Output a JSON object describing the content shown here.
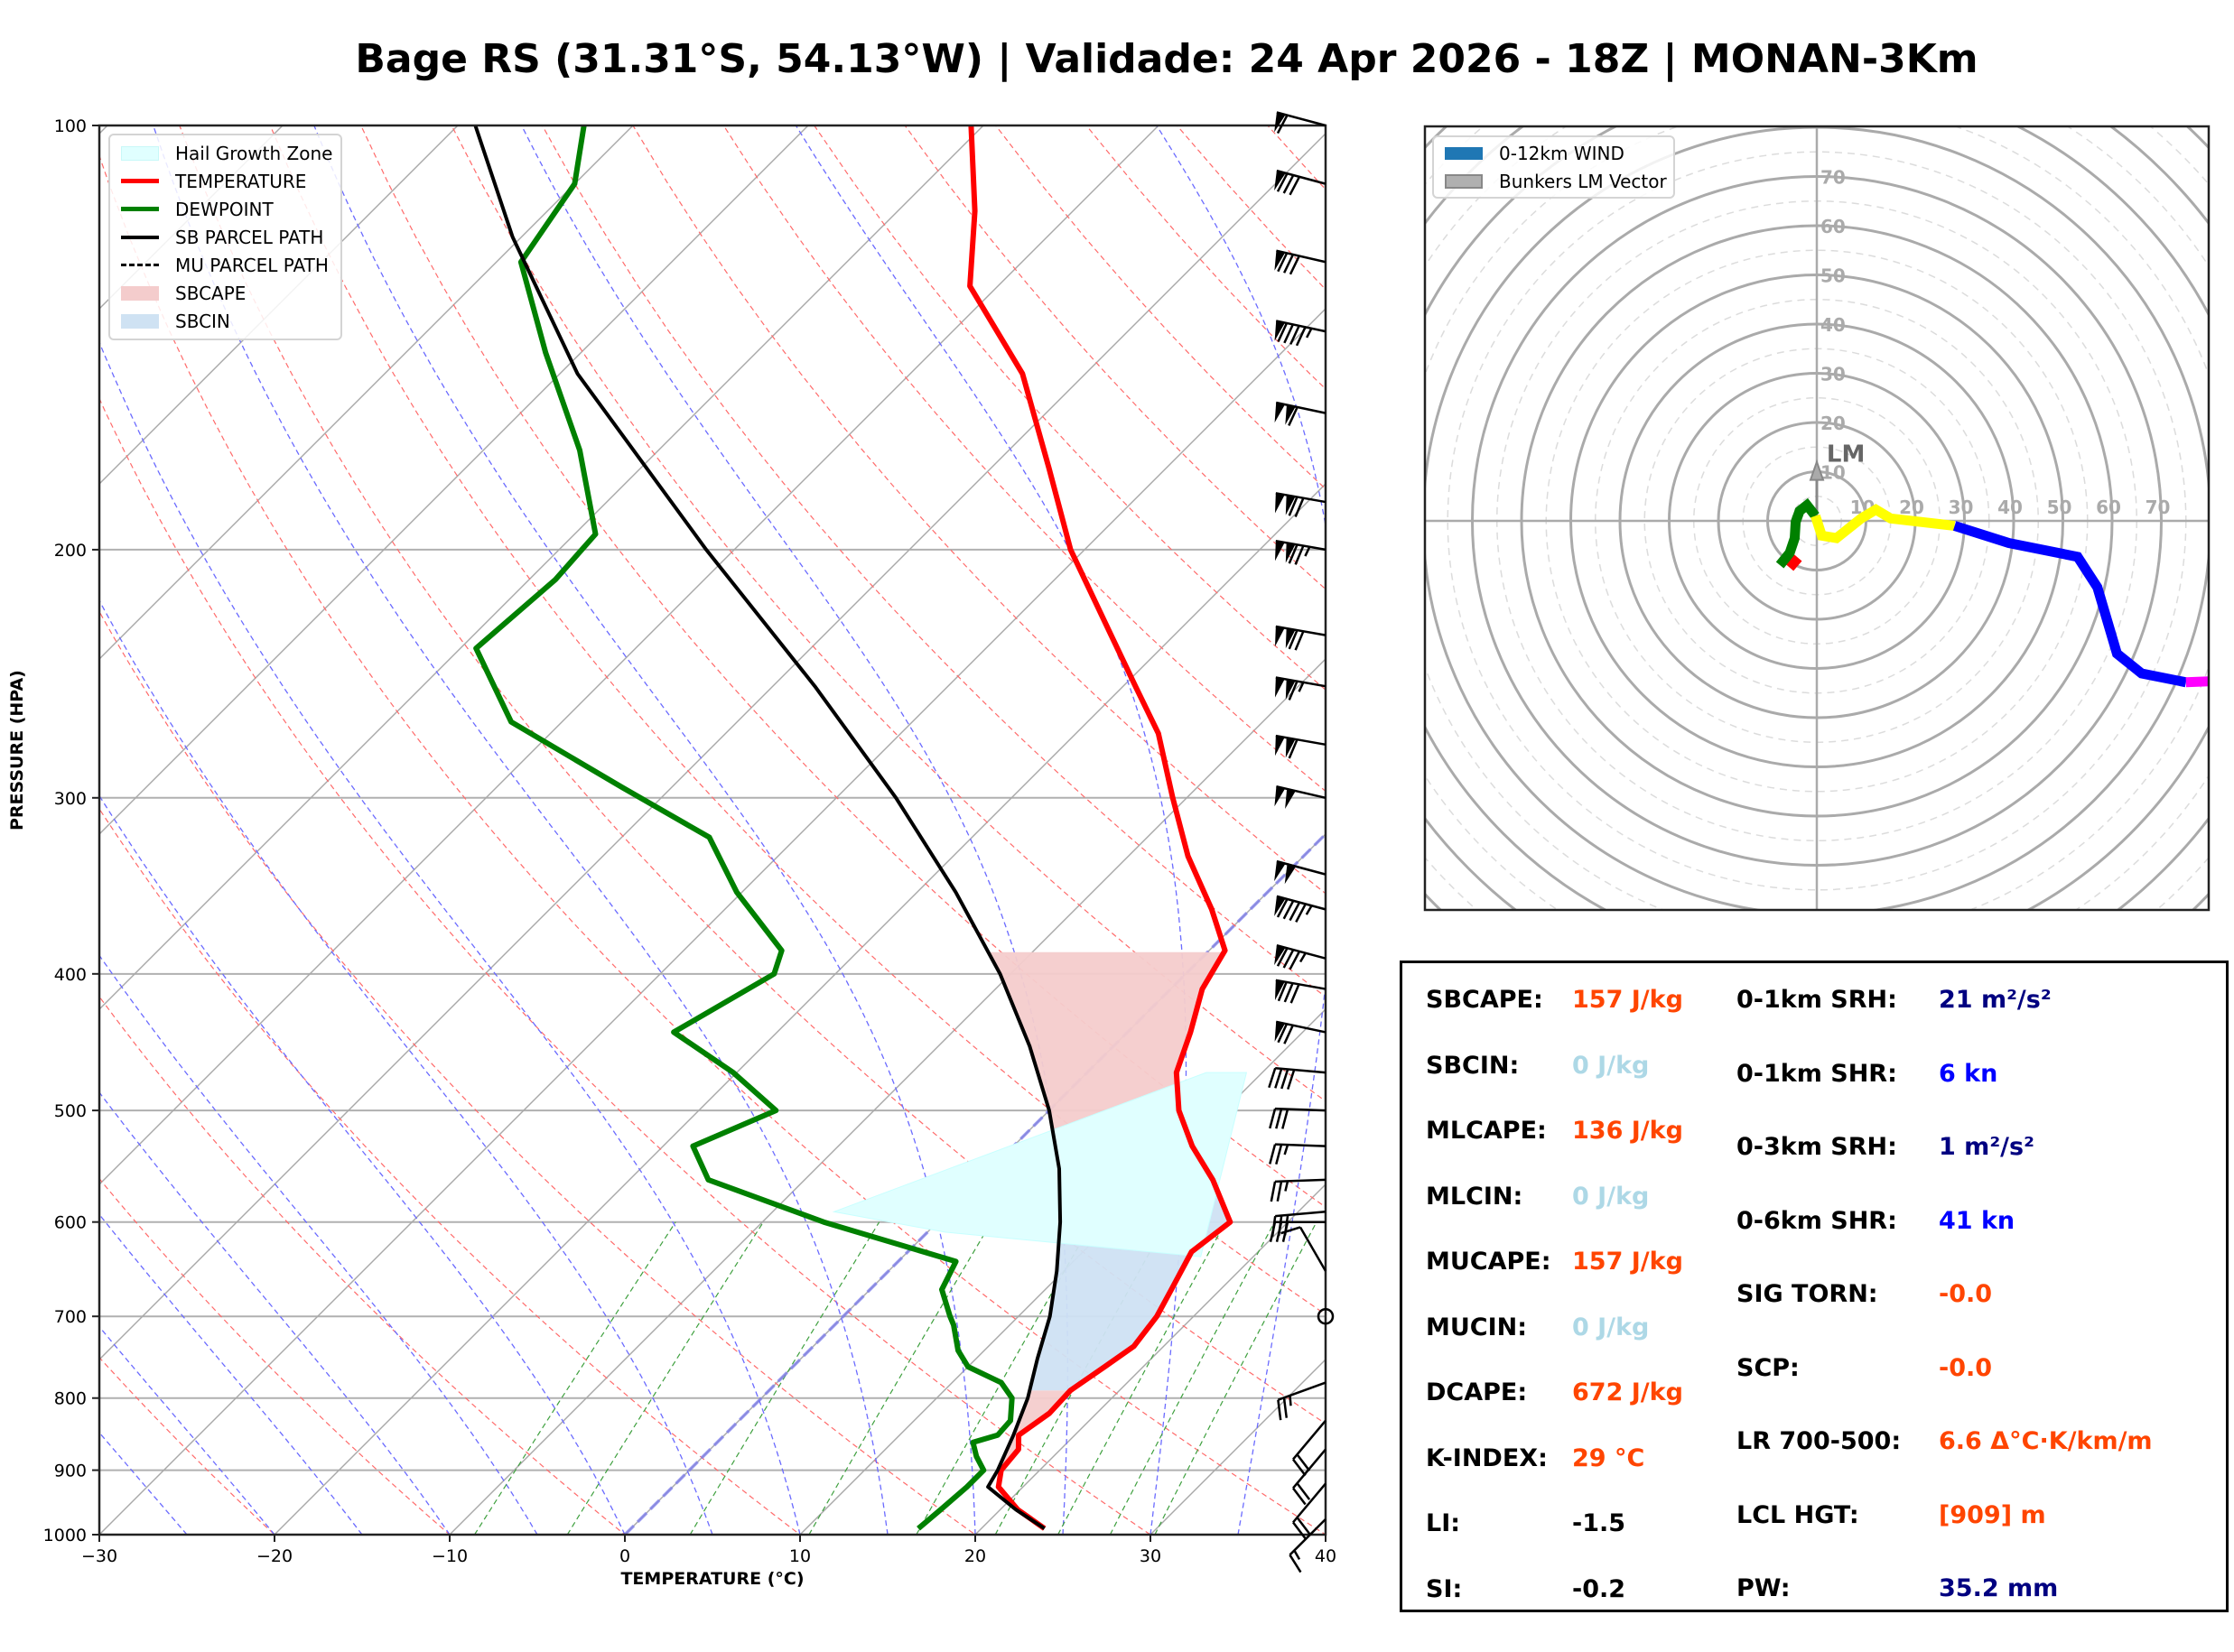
{
  "title": "Bage RS (31.31°S, 54.13°W) | Validade: 24 Apr 2026 - 18Z | MONAN-3Km",
  "chart_data": [
    {
      "type": "line",
      "subtype": "skew-t log-p",
      "xlabel": "TEMPERATURE (°C)",
      "ylabel": "PRESSURE (HPA)",
      "xlim": [
        -30,
        40
      ],
      "ylim": [
        1000,
        100
      ],
      "x_ticks": [
        "−30",
        "−20",
        "−10",
        "0",
        "10",
        "20",
        "30",
        "40"
      ],
      "x_tick_values": [
        -30,
        -20,
        -10,
        0,
        10,
        20,
        30,
        40
      ],
      "y_ticks": [
        "100",
        "200",
        "300",
        "400",
        "500",
        "600",
        "700",
        "800",
        "900",
        "1000"
      ],
      "y_tick_values": [
        100,
        200,
        300,
        400,
        500,
        600,
        700,
        800,
        900,
        1000
      ],
      "grid": true,
      "legend_position": "top-left",
      "legend": [
        {
          "label": "Hail Growth Zone",
          "kind": "patch",
          "color": "#e0ffff"
        },
        {
          "label": "TEMPERATURE",
          "kind": "line",
          "color": "#ff0000"
        },
        {
          "label": "DEWPOINT",
          "kind": "line",
          "color": "#008000"
        },
        {
          "label": "SB PARCEL PATH",
          "kind": "line",
          "color": "#000000"
        },
        {
          "label": "MU PARCEL PATH",
          "kind": "dashed",
          "color": "#000000"
        },
        {
          "label": "SBCAPE",
          "kind": "patch",
          "color": "#f4cccc"
        },
        {
          "label": "SBCIN",
          "kind": "patch",
          "color": "#cfe2f3"
        }
      ],
      "series": [
        {
          "name": "TEMPERATURE",
          "color": "#ff0000",
          "points": [
            [
              990,
              23.6
            ],
            [
              960,
              21
            ],
            [
              925,
              18.6
            ],
            [
              900,
              17.8
            ],
            [
              870,
              17.6
            ],
            [
              850,
              16.8
            ],
            [
              820,
              17.3
            ],
            [
              790,
              17.2
            ],
            [
              760,
              17.8
            ],
            [
              735,
              18.3
            ],
            [
              700,
              17.9
            ],
            [
              670,
              17.2
            ],
            [
              630,
              16.2
            ],
            [
              600,
              16.7
            ],
            [
              560,
              13.3
            ],
            [
              530,
              10.2
            ],
            [
              500,
              7.4
            ],
            [
              470,
              5.1
            ],
            [
              440,
              3.6
            ],
            [
              410,
              1.8
            ],
            [
              385,
              0.9
            ],
            [
              360,
              -2.2
            ],
            [
              330,
              -6.6
            ],
            [
              300,
              -10.8
            ],
            [
              270,
              -15.3
            ],
            [
              250,
              -19.3
            ],
            [
              230,
              -23.6
            ],
            [
              200,
              -30.8
            ],
            [
              175,
              -36.7
            ],
            [
              150,
              -43.6
            ],
            [
              130,
              -51.6
            ],
            [
              115,
              -55.6
            ],
            [
              100,
              -60.7
            ]
          ]
        },
        {
          "name": "DEWPOINT",
          "color": "#008000",
          "points": [
            [
              990,
              16.4
            ],
            [
              960,
              16.6
            ],
            [
              925,
              16.8
            ],
            [
              900,
              16.8
            ],
            [
              880,
              15.6
            ],
            [
              860,
              14.6
            ],
            [
              850,
              15.6
            ],
            [
              830,
              15.5
            ],
            [
              800,
              14.3
            ],
            [
              780,
              12.8
            ],
            [
              760,
              10.0
            ],
            [
              740,
              8.5
            ],
            [
              710,
              6.8
            ],
            [
              700,
              6.1
            ],
            [
              670,
              4.1
            ],
            [
              640,
              3.3
            ],
            [
              600,
              -6.5
            ],
            [
              560,
              -15.5
            ],
            [
              530,
              -18.3
            ],
            [
              500,
              -15.6
            ],
            [
              470,
              -20.2
            ],
            [
              440,
              -25.9
            ],
            [
              400,
              -23.5
            ],
            [
              385,
              -24.4
            ],
            [
              350,
              -30.3
            ],
            [
              320,
              -35.0
            ],
            [
              295,
              -42.8
            ],
            [
              265,
              -52.9
            ],
            [
              235,
              -59.1
            ],
            [
              210,
              -58.5
            ],
            [
              195,
              -58.8
            ],
            [
              170,
              -64.5
            ],
            [
              145,
              -72.0
            ],
            [
              125,
              -78.6
            ],
            [
              110,
              -80.0
            ],
            [
              100,
              -82.8
            ]
          ]
        },
        {
          "name": "SB PARCEL PATH",
          "color": "#000000",
          "points": [
            [
              990,
              23.6
            ],
            [
              960,
              20.9
            ],
            [
              925,
              18.0
            ],
            [
              900,
              17.6
            ],
            [
              850,
              16.5
            ],
            [
              800,
              15.2
            ],
            [
              750,
              13.5
            ],
            [
              700,
              11.8
            ],
            [
              650,
              9.6
            ],
            [
              600,
              7.0
            ],
            [
              550,
              3.9
            ],
            [
              500,
              0.0
            ],
            [
              450,
              -4.8
            ],
            [
              400,
              -10.6
            ],
            [
              350,
              -17.8
            ],
            [
              300,
              -26.6
            ],
            [
              250,
              -37.6
            ],
            [
              200,
              -51.6
            ],
            [
              150,
              -69.0
            ],
            [
              120,
              -80.5
            ],
            [
              100,
              -89.0
            ]
          ]
        }
      ],
      "shaded_regions": [
        {
          "name": "SBCAPE",
          "color": "#f4cccc",
          "between": "TEMPERATURE and SB PARCEL PATH",
          "ranges_hpa": [
            [
              900,
              790
            ],
            [
              560,
              385
            ]
          ]
        },
        {
          "name": "SBCIN",
          "color": "#cfe2f3",
          "between": "TEMPERATURE and SB PARCEL PATH",
          "ranges_hpa": [
            [
              790,
              560
            ]
          ]
        },
        {
          "name": "Hail Growth Zone",
          "color": "#e0ffff",
          "polygon_hpa_c": [
            [
              635,
              17.0
            ],
            [
              470,
              9.1
            ],
            [
              470,
              6.8
            ],
            [
              590,
              -6.5
            ],
            [
              610,
              1.0
            ]
          ]
        }
      ],
      "wind_barbs": {
        "position": "right-edge",
        "levels_hpa": [
          100,
          110,
          125,
          140,
          160,
          185,
          200,
          230,
          250,
          275,
          300,
          340,
          360,
          390,
          410,
          440,
          470,
          500,
          530,
          560,
          590,
          600,
          650,
          700,
          780,
          830,
          870,
          920,
          975
        ],
        "note": "Barbs depict winds in knots; pennants at upper levels, calm circle near 700 hPa"
      }
    },
    {
      "type": "line",
      "subtype": "hodograph",
      "xlim": [
        -80,
        80
      ],
      "ylim": [
        -80,
        80
      ],
      "ring_labels": [
        "10",
        "20",
        "30",
        "40",
        "50",
        "60",
        "70"
      ],
      "ring_values": [
        10,
        20,
        30,
        40,
        50,
        60,
        70
      ],
      "grid": true,
      "legend_position": "top-left",
      "legend": [
        {
          "label": "0-12km WIND",
          "color": "#1f77b4"
        },
        {
          "label": "Bunkers LM Vector",
          "color": "#aaaaaa"
        }
      ],
      "annotations": [
        {
          "text": "LM",
          "u": 2,
          "v": 12
        }
      ],
      "bunkers_lm": {
        "u": 0,
        "v": 12
      },
      "segments": [
        {
          "layer": "0-1km",
          "color": "#ff0000",
          "points": [
            [
              -5.5,
              -9.5
            ],
            [
              -3.8,
              -7.5
            ]
          ]
        },
        {
          "layer": "1-3km",
          "color": "#008000",
          "points": [
            [
              -7.5,
              -9.0
            ],
            [
              -5.5,
              -6.5
            ],
            [
              -4.5,
              -3.5
            ],
            [
              -4.3,
              -0.2
            ],
            [
              -3.5,
              2.0
            ],
            [
              -2.0,
              3.2
            ],
            [
              -0.3,
              1.0
            ]
          ]
        },
        {
          "layer": "3-6km",
          "color": "#ffff00",
          "points": [
            [
              -0.3,
              1.0
            ],
            [
              1.0,
              -3.0
            ],
            [
              4.0,
              -3.5
            ],
            [
              9.0,
              0.5
            ],
            [
              12.0,
              2.3
            ],
            [
              15.0,
              0.5
            ],
            [
              28.0,
              -1.0
            ]
          ]
        },
        {
          "layer": "6-9km",
          "color": "#0000ff",
          "points": [
            [
              28.0,
              -1.0
            ],
            [
              39.0,
              -4.5
            ],
            [
              53.0,
              -7.3
            ],
            [
              57.0,
              -13.5
            ],
            [
              61.0,
              -27.0
            ],
            [
              66.0,
              -31.0
            ],
            [
              75.0,
              -32.8
            ]
          ]
        },
        {
          "layer": "9-12km",
          "color": "#ff00ff",
          "points": [
            [
              75.0,
              -32.8
            ],
            [
              80.0,
              -32.6
            ]
          ]
        }
      ]
    }
  ],
  "skewt_legend": {
    "items": [
      "Hail Growth Zone",
      "TEMPERATURE",
      "DEWPOINT",
      "SB PARCEL PATH",
      "MU PARCEL PATH",
      "SBCAPE",
      "SBCIN"
    ]
  },
  "hodo_legend": {
    "items": [
      "0-12km WIND",
      "Bunkers LM Vector"
    ]
  },
  "indices": {
    "left": [
      {
        "label": "SBCAPE:",
        "value": "157 J/kg",
        "color": "#ff4500"
      },
      {
        "label": "SBCIN:",
        "value": "0 J/kg",
        "color": "#add8e6"
      },
      {
        "label": "MLCAPE:",
        "value": "136 J/kg",
        "color": "#ff4500"
      },
      {
        "label": "MLCIN:",
        "value": "0 J/kg",
        "color": "#add8e6"
      },
      {
        "label": "MUCAPE:",
        "value": "157 J/kg",
        "color": "#ff4500"
      },
      {
        "label": "MUCIN:",
        "value": "0 J/kg",
        "color": "#add8e6"
      },
      {
        "label": "DCAPE:",
        "value": "672 J/kg",
        "color": "#ff4500"
      },
      {
        "label": "K-INDEX:",
        "value": "29 °C",
        "color": "#ff4500"
      },
      {
        "label": "LI:",
        "value": "-1.5",
        "color": "#000000"
      },
      {
        "label": "SI:",
        "value": "-0.2",
        "color": "#000000"
      }
    ],
    "right": [
      {
        "label": "0-1km SRH:",
        "value": "21 m²/s²",
        "color": "#000080"
      },
      {
        "label": "0-1km SHR:",
        "value": "6 kn",
        "color": "#0000ff"
      },
      {
        "label": "0-3km SRH:",
        "value": "1 m²/s²",
        "color": "#000080"
      },
      {
        "label": "0-6km SHR:",
        "value": "41 kn",
        "color": "#0000ff"
      },
      {
        "label": "SIG TORN:",
        "value": "-0.0",
        "color": "#ff4500"
      },
      {
        "label": "SCP:",
        "value": "-0.0",
        "color": "#ff4500"
      },
      {
        "label": "LR 700-500:",
        "value": "6.6 Δ°C·K/km/m",
        "color": "#ff4500"
      },
      {
        "label": "LCL HGT:",
        "value": "[909] m",
        "color": "#ff4500"
      },
      {
        "label": "PW:",
        "value": "35.2 mm",
        "color": "#000080"
      }
    ]
  }
}
